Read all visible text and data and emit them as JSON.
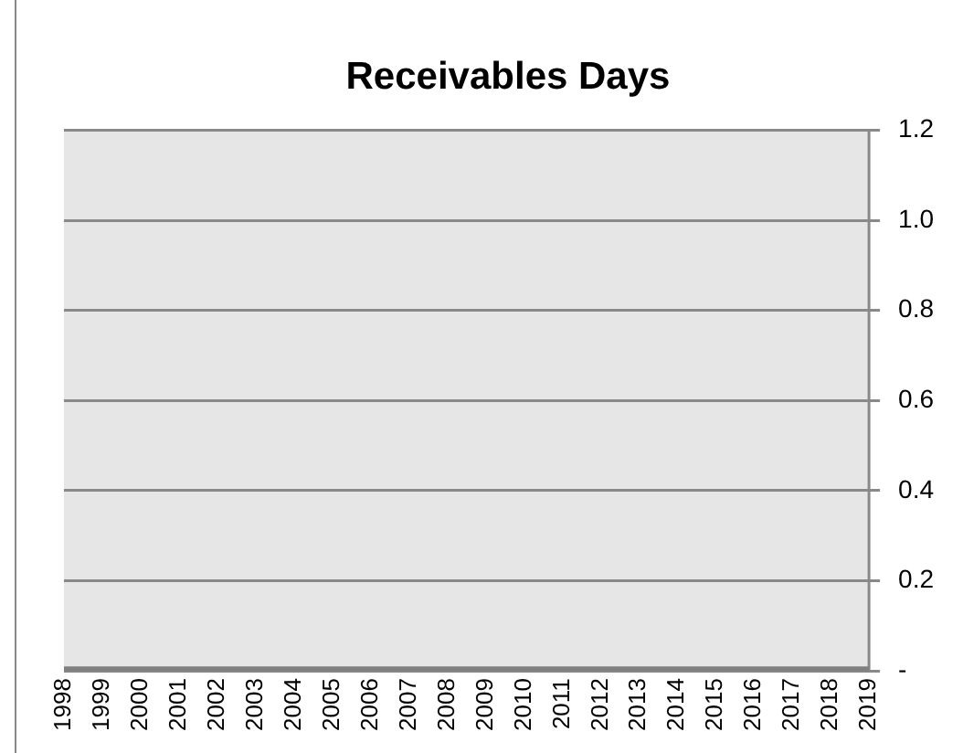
{
  "chart_data": {
    "type": "line",
    "title": "Receivables Days",
    "categories": [
      "1998",
      "1999",
      "2000",
      "2001",
      "2002",
      "2003",
      "2004",
      "2005",
      "2006",
      "2007",
      "2008",
      "2009",
      "2010",
      "2011",
      "2012",
      "2013",
      "2014",
      "2015",
      "2016",
      "2017",
      "2018",
      "2019"
    ],
    "series": [
      {
        "color": "#808080",
        "values": [
          0,
          0,
          0,
          0,
          0,
          0,
          0,
          0,
          0,
          0,
          0,
          0,
          0,
          0,
          0,
          0,
          0,
          0,
          0,
          0,
          0,
          0
        ]
      }
    ],
    "ylim": [
      0,
      1.2
    ],
    "yticks": [
      {
        "value": 0,
        "label": "-"
      },
      {
        "value": 0.2,
        "label": "0.2"
      },
      {
        "value": 0.4,
        "label": "0.4"
      },
      {
        "value": 0.6,
        "label": "0.6"
      },
      {
        "value": 0.8,
        "label": "0.8"
      },
      {
        "value": 1.0,
        "label": "1.0"
      },
      {
        "value": 1.2,
        "label": "1.2"
      }
    ],
    "grid": "y",
    "legend": false,
    "marker": "none",
    "line_style": "solid"
  }
}
